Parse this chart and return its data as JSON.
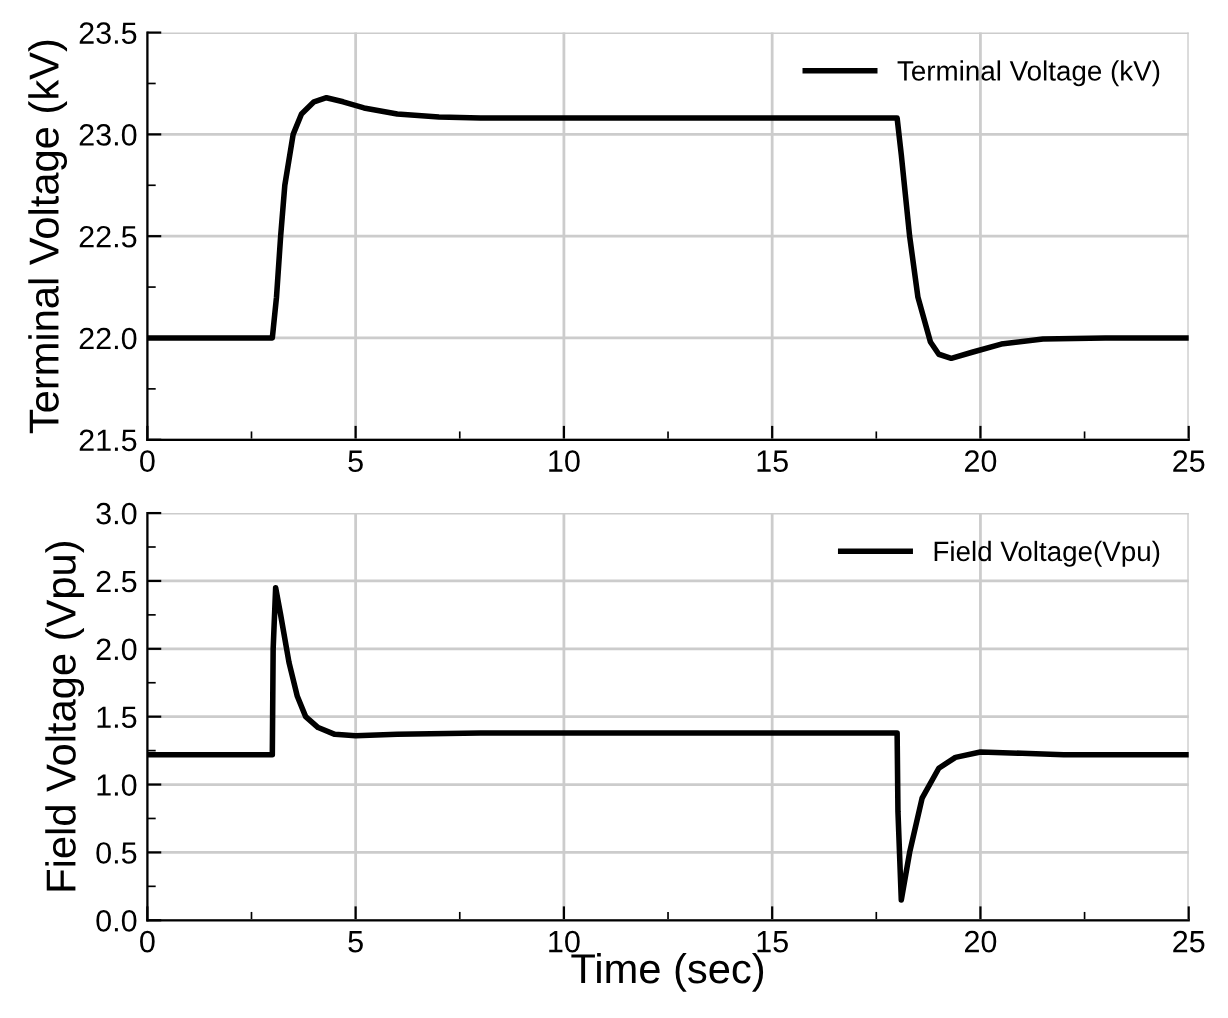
{
  "chart_data": [
    {
      "type": "line",
      "ylabel": "Terminal Voltage (kV)",
      "xlim": [
        0,
        25
      ],
      "xticks": [
        0,
        5,
        10,
        15,
        20,
        25
      ],
      "ylim": [
        21.5,
        23.5
      ],
      "yticks": [
        {
          "value": 21.5,
          "label": "21.5"
        },
        {
          "value": 22.0,
          "label": "22.0"
        },
        {
          "value": 22.5,
          "label": "22.5"
        },
        {
          "value": 23.0,
          "label": "23.0"
        },
        {
          "value": 23.5,
          "label": "23.5"
        }
      ],
      "grid": true,
      "legend": "top right",
      "line_style": "solid",
      "marker": "none",
      "series": [
        {
          "name": "Terminal Voltage (kV)",
          "color": "#000000",
          "x": [
            0,
            3.0,
            3.1,
            3.2,
            3.3,
            3.5,
            3.7,
            4.0,
            4.3,
            4.7,
            5.2,
            6,
            7,
            8,
            18.0,
            18.1,
            18.3,
            18.5,
            18.8,
            19.0,
            19.3,
            19.8,
            20.5,
            21.5,
            23,
            25
          ],
          "values": [
            22.0,
            22.0,
            22.2,
            22.5,
            22.75,
            23.0,
            23.1,
            23.16,
            23.18,
            23.16,
            23.13,
            23.1,
            23.085,
            23.08,
            23.08,
            22.9,
            22.5,
            22.2,
            21.98,
            21.92,
            21.9,
            21.93,
            21.97,
            21.995,
            22.0,
            22.0
          ]
        }
      ]
    },
    {
      "type": "line",
      "xlabel": "Time (sec)",
      "ylabel": "Field Voltage (Vpu)",
      "xlim": [
        0,
        25
      ],
      "xticks": [
        0,
        5,
        10,
        15,
        20,
        25
      ],
      "ylim": [
        0,
        3.0
      ],
      "yticks": [
        {
          "value": 0,
          "label": "0.0"
        },
        {
          "value": 0.5,
          "label": "0.5"
        },
        {
          "value": 1.0,
          "label": "1.0"
        },
        {
          "value": 1.5,
          "label": "1.5"
        },
        {
          "value": 2.0,
          "label": "2.0"
        },
        {
          "value": 2.5,
          "label": "2.5"
        },
        {
          "value": 3.0,
          "label": "3.0"
        }
      ],
      "grid": true,
      "legend": "top right",
      "line_style": "solid",
      "marker": "none",
      "series": [
        {
          "name": "Field Voltage(Vpu)",
          "color": "#000000",
          "x": [
            0,
            3.0,
            3.02,
            3.08,
            3.2,
            3.4,
            3.6,
            3.8,
            4.1,
            4.5,
            5,
            6,
            8,
            18.0,
            18.02,
            18.1,
            18.3,
            18.6,
            19,
            19.4,
            20,
            21,
            22,
            25
          ],
          "values": [
            1.22,
            1.22,
            2.0,
            2.45,
            2.25,
            1.9,
            1.65,
            1.5,
            1.42,
            1.37,
            1.36,
            1.37,
            1.38,
            1.38,
            0.8,
            0.15,
            0.5,
            0.9,
            1.12,
            1.2,
            1.24,
            1.23,
            1.22,
            1.22
          ]
        }
      ]
    }
  ]
}
